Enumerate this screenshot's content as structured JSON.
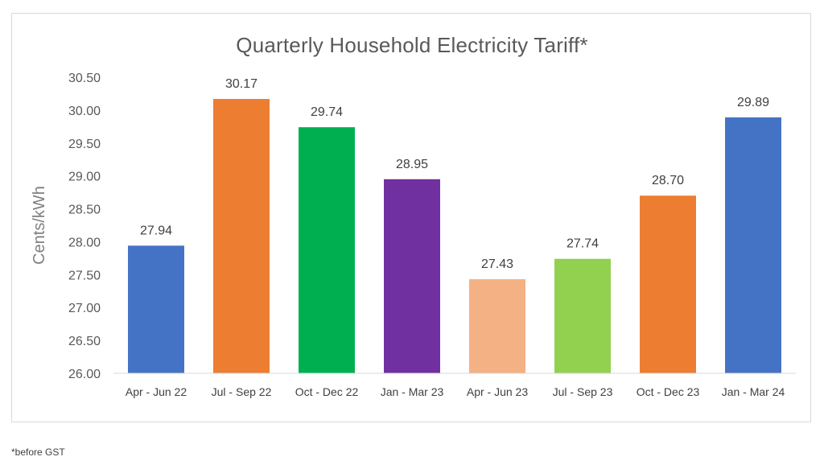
{
  "chart_data": {
    "type": "bar",
    "title": "Quarterly Household  Electricity Tariff*",
    "ylabel": "Cents/kWh",
    "xlabel": "",
    "ylim": [
      26.0,
      30.5
    ],
    "ytick_step": 0.5,
    "yticks": [
      "26.00",
      "26.50",
      "27.00",
      "27.50",
      "28.00",
      "28.50",
      "29.00",
      "29.50",
      "30.00",
      "30.50"
    ],
    "categories": [
      "Apr - Jun 22",
      "Jul - Sep 22",
      "Oct - Dec 22",
      "Jan - Mar 23",
      "Apr - Jun 23",
      "Jul - Sep 23",
      "Oct - Dec 23",
      "Jan - Mar 24"
    ],
    "values": [
      27.94,
      30.17,
      29.74,
      28.95,
      27.43,
      27.74,
      28.7,
      29.89
    ],
    "value_labels": [
      "27.94",
      "30.17",
      "29.74",
      "28.95",
      "27.43",
      "27.74",
      "28.70",
      "29.89"
    ],
    "bar_colors": [
      "#4472c4",
      "#ed7d31",
      "#00b050",
      "#7030a0",
      "#f4b183",
      "#92d050",
      "#ed7d31",
      "#4472c4"
    ],
    "grid": false,
    "legend": "none"
  },
  "footnote": "*before GST"
}
